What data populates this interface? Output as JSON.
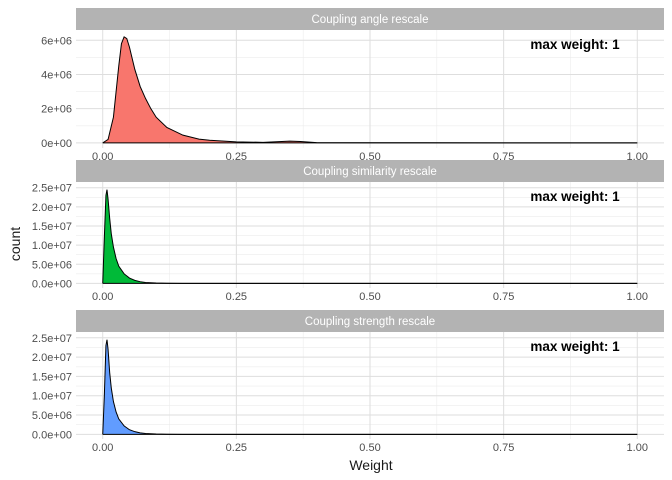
{
  "chart_data": {
    "type": "area",
    "xlabel": "Weight",
    "ylabel": "count",
    "xlim": [
      -0.05,
      1.05
    ],
    "x_ticks": [
      0,
      0.25,
      0.5,
      0.75,
      1
    ],
    "x_tick_labels": [
      "0.00",
      "0.25",
      "0.50",
      "0.75",
      "1.00"
    ],
    "grid": true,
    "legend": "none",
    "panels": [
      {
        "strip": "Coupling angle rescale",
        "fill_color": "#F8766D",
        "annotation": "max weight: 1",
        "ylim": [
          -300000,
          6600000
        ],
        "y_ticks": [
          0,
          2000000,
          4000000,
          6000000
        ],
        "y_tick_labels": [
          "0e+00",
          "2e+06",
          "4e+06",
          "6e+06"
        ],
        "x": [
          0,
          0.01,
          0.02,
          0.03,
          0.035,
          0.04,
          0.045,
          0.05,
          0.06,
          0.07,
          0.08,
          0.09,
          0.1,
          0.12,
          0.15,
          0.18,
          0.2,
          0.25,
          0.3,
          0.35,
          0.37,
          0.4,
          0.5,
          0.6,
          0.8,
          1.0
        ],
        "y": [
          0,
          200000,
          1500000,
          4500000,
          5800000,
          6200000,
          6100000,
          5600000,
          4300000,
          3300000,
          2600000,
          2000000,
          1500000,
          900000,
          450000,
          220000,
          150000,
          60000,
          30000,
          100000,
          80000,
          15000,
          8000,
          4000,
          2000,
          1000
        ]
      },
      {
        "strip": "Coupling similarity rescale",
        "fill_color": "#00BA38",
        "annotation": "max weight: 1",
        "ylim": [
          -1200000,
          26500000
        ],
        "y_ticks": [
          0,
          5000000,
          10000000,
          15000000,
          20000000,
          25000000
        ],
        "y_tick_labels": [
          "0.0e+00",
          "5.0e+06",
          "1.0e+07",
          "1.5e+07",
          "2.0e+07",
          "2.5e+07"
        ],
        "x": [
          0,
          0.003,
          0.006,
          0.008,
          0.01,
          0.013,
          0.016,
          0.02,
          0.025,
          0.03,
          0.04,
          0.05,
          0.06,
          0.07,
          0.08,
          0.1,
          0.12,
          0.15,
          0.2,
          0.3,
          0.5,
          1.0
        ],
        "y": [
          0,
          12000000,
          23000000,
          24500000,
          22000000,
          17000000,
          13000000,
          9500000,
          6500000,
          4500000,
          2500000,
          1400000,
          800000,
          450000,
          250000,
          100000,
          40000,
          15000,
          5000,
          2000,
          1000,
          500
        ]
      },
      {
        "strip": "Coupling strength rescale",
        "fill_color": "#619CFF",
        "annotation": "max weight: 1",
        "ylim": [
          -1200000,
          26500000
        ],
        "y_ticks": [
          0,
          5000000,
          10000000,
          15000000,
          20000000,
          25000000
        ],
        "y_tick_labels": [
          "0.0e+00",
          "5.0e+06",
          "1.0e+07",
          "1.5e+07",
          "2.0e+07",
          "2.5e+07"
        ],
        "x": [
          0,
          0.003,
          0.006,
          0.008,
          0.01,
          0.013,
          0.016,
          0.02,
          0.025,
          0.03,
          0.04,
          0.05,
          0.06,
          0.07,
          0.08,
          0.1,
          0.12,
          0.15,
          0.2,
          0.3,
          0.5,
          1.0
        ],
        "y": [
          0,
          10000000,
          23000000,
          24500000,
          22000000,
          16000000,
          12000000,
          8500000,
          5800000,
          4000000,
          2200000,
          1200000,
          700000,
          400000,
          220000,
          90000,
          35000,
          12000,
          4000,
          1500,
          800,
          400
        ]
      }
    ]
  }
}
